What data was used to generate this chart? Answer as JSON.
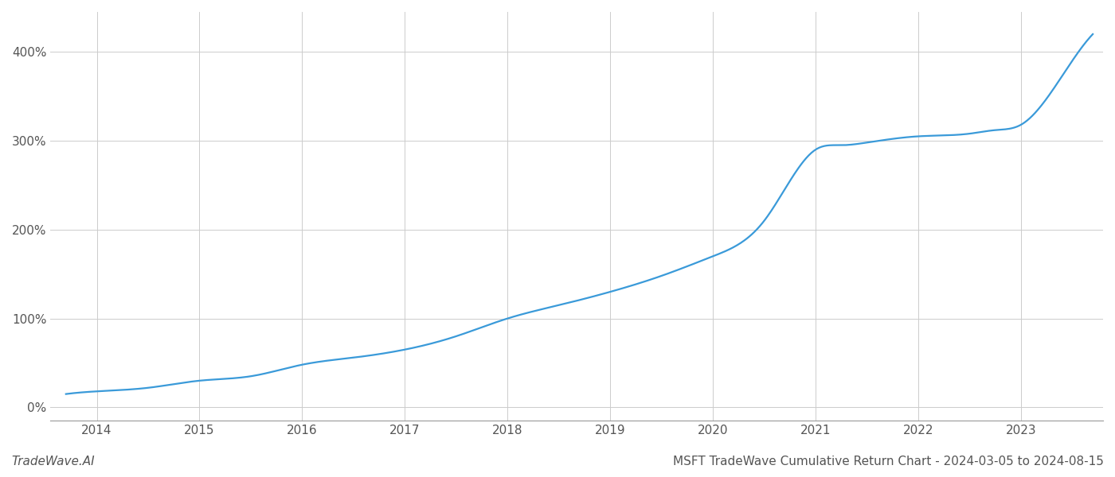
{
  "title": "MSFT TradeWave Cumulative Return Chart - 2024-03-05 to 2024-08-15",
  "watermark": "TradeWave.AI",
  "line_color": "#3a9ad9",
  "background_color": "#ffffff",
  "grid_color": "#cccccc",
  "x_years": [
    2014,
    2015,
    2016,
    2017,
    2018,
    2019,
    2020,
    2021,
    2022,
    2023
  ],
  "key_x": [
    2013.7,
    2014.0,
    2014.5,
    2015.0,
    2015.5,
    2016.0,
    2016.5,
    2017.0,
    2017.5,
    2018.0,
    2018.5,
    2019.0,
    2019.5,
    2020.0,
    2020.5,
    2021.0,
    2021.25,
    2021.5,
    2022.0,
    2022.5,
    2022.75,
    2023.0,
    2023.5,
    2023.7
  ],
  "key_y": [
    15,
    18,
    22,
    30,
    35,
    48,
    56,
    65,
    80,
    100,
    115,
    130,
    148,
    170,
    210,
    290,
    295,
    298,
    305,
    308,
    312,
    318,
    390,
    420
  ],
  "ylim": [
    -15,
    445
  ],
  "xlim": [
    2013.55,
    2023.8
  ],
  "yticks": [
    0,
    100,
    200,
    300,
    400
  ],
  "ytick_labels": [
    "0%",
    "100%",
    "200%",
    "300%",
    "400%"
  ],
  "title_fontsize": 11,
  "watermark_fontsize": 11,
  "axis_label_fontsize": 11,
  "line_width": 1.6
}
